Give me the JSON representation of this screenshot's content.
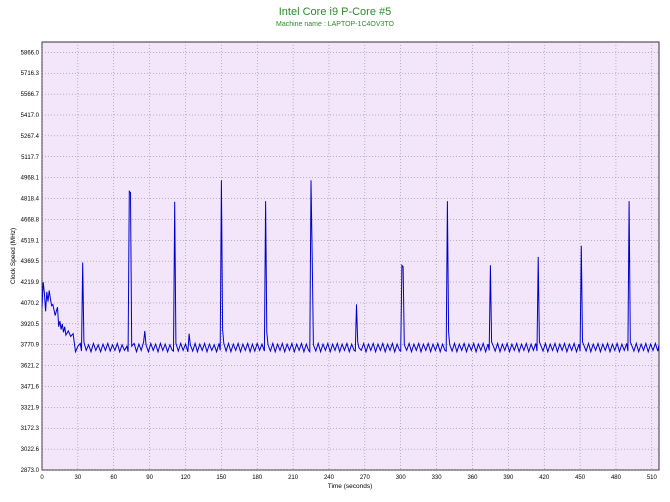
{
  "chart_data": {
    "type": "line",
    "title": "Intel Core i9 P-Core #5",
    "subtitle": "Machine name : LAPTOP-1C4OV3TO",
    "xlabel": "Time (seconds)",
    "ylabel": "Clock Speed (MHz)",
    "xlim": [
      0,
      516
    ],
    "ylim": [
      2873.0,
      5940
    ],
    "xticks": [
      0,
      30,
      60,
      90,
      120,
      150,
      180,
      210,
      240,
      270,
      300,
      330,
      360,
      390,
      420,
      450,
      480,
      510
    ],
    "yticks": [
      2873.0,
      3022.6,
      3172.3,
      3321.9,
      3471.6,
      3621.2,
      3770.9,
      3920.5,
      4070.2,
      4219.9,
      4369.5,
      4519.1,
      4668.8,
      4818.4,
      4968.1,
      5117.7,
      5267.4,
      5417.0,
      5566.7,
      5716.3,
      5866.0
    ],
    "ytick_labels": [
      "2873.0",
      "3022.6",
      "3172.3",
      "3321.9",
      "3471.6",
      "3621.2",
      "3770.9",
      "3920.5",
      "4070.2",
      "4219.9",
      "4369.5",
      "4519.1",
      "4668.8",
      "4818.4",
      "4968.1",
      "5117.7",
      "5267.4",
      "5417.0",
      "5566.7",
      "5716.3",
      "5866.0"
    ],
    "grid": true,
    "colors": {
      "line": "#0000cc",
      "plot_bg": "#f3e6fb",
      "grid": "#7a7a7a",
      "title": "#2e8b2e"
    },
    "series": [
      {
        "values": [
          [
            0,
            4040
          ],
          [
            1,
            4220
          ],
          [
            2,
            4140
          ],
          [
            3,
            4010
          ],
          [
            4,
            4150
          ],
          [
            5,
            4080
          ],
          [
            6,
            4160
          ],
          [
            7,
            4100
          ],
          [
            8,
            4050
          ],
          [
            9,
            4060
          ],
          [
            10,
            4020
          ],
          [
            11,
            3980
          ],
          [
            12,
            4010
          ],
          [
            13,
            4040
          ],
          [
            14,
            3900
          ],
          [
            15,
            3940
          ],
          [
            16,
            3880
          ],
          [
            17,
            3920
          ],
          [
            18,
            3860
          ],
          [
            19,
            3900
          ],
          [
            20,
            3840
          ],
          [
            22,
            3870
          ],
          [
            24,
            3830
          ],
          [
            26,
            3850
          ],
          [
            28,
            3720
          ],
          [
            30,
            3760
          ],
          [
            32,
            3780
          ],
          [
            33,
            3725
          ],
          [
            34,
            4360
          ],
          [
            35,
            3790
          ],
          [
            37,
            3730
          ],
          [
            39,
            3770
          ],
          [
            41,
            3720
          ],
          [
            43,
            3780
          ],
          [
            45,
            3730
          ],
          [
            47,
            3770
          ],
          [
            49,
            3720
          ],
          [
            51,
            3775
          ],
          [
            53,
            3730
          ],
          [
            55,
            3780
          ],
          [
            57,
            3725
          ],
          [
            59,
            3770
          ],
          [
            61,
            3730
          ],
          [
            63,
            3780
          ],
          [
            65,
            3720
          ],
          [
            67,
            3770
          ],
          [
            69,
            3730
          ],
          [
            71,
            3760
          ],
          [
            72,
            3720
          ],
          [
            73,
            4870
          ],
          [
            74,
            4860
          ],
          [
            75,
            3760
          ],
          [
            77,
            3780
          ],
          [
            79,
            3720
          ],
          [
            81,
            3775
          ],
          [
            83,
            3730
          ],
          [
            85,
            3790
          ],
          [
            86,
            3870
          ],
          [
            87,
            3770
          ],
          [
            89,
            3720
          ],
          [
            91,
            3780
          ],
          [
            93,
            3730
          ],
          [
            95,
            3775
          ],
          [
            97,
            3720
          ],
          [
            99,
            3780
          ],
          [
            101,
            3730
          ],
          [
            103,
            3775
          ],
          [
            105,
            3720
          ],
          [
            107,
            3770
          ],
          [
            109,
            3730
          ],
          [
            110,
            3725
          ],
          [
            111,
            4795
          ],
          [
            112,
            3780
          ],
          [
            114,
            3725
          ],
          [
            116,
            3780
          ],
          [
            118,
            3730
          ],
          [
            120,
            3775
          ],
          [
            122,
            3720
          ],
          [
            123,
            3850
          ],
          [
            124,
            3770
          ],
          [
            126,
            3725
          ],
          [
            128,
            3780
          ],
          [
            130,
            3720
          ],
          [
            132,
            3775
          ],
          [
            134,
            3730
          ],
          [
            136,
            3780
          ],
          [
            138,
            3720
          ],
          [
            140,
            3775
          ],
          [
            142,
            3730
          ],
          [
            144,
            3770
          ],
          [
            146,
            3720
          ],
          [
            148,
            3780
          ],
          [
            149,
            3730
          ],
          [
            150,
            4950
          ],
          [
            151,
            3880
          ],
          [
            152,
            3780
          ],
          [
            154,
            3725
          ],
          [
            156,
            3780
          ],
          [
            158,
            3720
          ],
          [
            160,
            3775
          ],
          [
            162,
            3730
          ],
          [
            164,
            3780
          ],
          [
            166,
            3720
          ],
          [
            168,
            3775
          ],
          [
            170,
            3730
          ],
          [
            172,
            3780
          ],
          [
            174,
            3720
          ],
          [
            176,
            3775
          ],
          [
            178,
            3725
          ],
          [
            180,
            3780
          ],
          [
            182,
            3730
          ],
          [
            184,
            3775
          ],
          [
            186,
            3725
          ],
          [
            187,
            4800
          ],
          [
            188,
            3860
          ],
          [
            189,
            3770
          ],
          [
            191,
            3725
          ],
          [
            193,
            3780
          ],
          [
            195,
            3720
          ],
          [
            197,
            3775
          ],
          [
            199,
            3730
          ],
          [
            201,
            3780
          ],
          [
            203,
            3720
          ],
          [
            205,
            3775
          ],
          [
            207,
            3730
          ],
          [
            209,
            3780
          ],
          [
            211,
            3720
          ],
          [
            213,
            3775
          ],
          [
            215,
            3730
          ],
          [
            217,
            3780
          ],
          [
            219,
            3720
          ],
          [
            221,
            3775
          ],
          [
            223,
            3730
          ],
          [
            224,
            3720
          ],
          [
            225,
            4950
          ],
          [
            226,
            4400
          ],
          [
            227,
            3770
          ],
          [
            229,
            3725
          ],
          [
            231,
            3780
          ],
          [
            233,
            3720
          ],
          [
            235,
            3775
          ],
          [
            237,
            3730
          ],
          [
            239,
            3780
          ],
          [
            241,
            3720
          ],
          [
            243,
            3775
          ],
          [
            245,
            3730
          ],
          [
            247,
            3780
          ],
          [
            249,
            3720
          ],
          [
            251,
            3775
          ],
          [
            253,
            3730
          ],
          [
            255,
            3780
          ],
          [
            257,
            3720
          ],
          [
            259,
            3775
          ],
          [
            261,
            3730
          ],
          [
            262,
            3725
          ],
          [
            263,
            4060
          ],
          [
            264,
            3790
          ],
          [
            265,
            3750
          ],
          [
            267,
            3730
          ],
          [
            269,
            3780
          ],
          [
            271,
            3720
          ],
          [
            273,
            3775
          ],
          [
            275,
            3730
          ],
          [
            277,
            3780
          ],
          [
            279,
            3720
          ],
          [
            281,
            3775
          ],
          [
            283,
            3730
          ],
          [
            285,
            3780
          ],
          [
            287,
            3720
          ],
          [
            289,
            3775
          ],
          [
            291,
            3730
          ],
          [
            293,
            3780
          ],
          [
            295,
            3720
          ],
          [
            297,
            3775
          ],
          [
            299,
            3730
          ],
          [
            300,
            3725
          ],
          [
            301,
            4340
          ],
          [
            302,
            4330
          ],
          [
            303,
            3770
          ],
          [
            305,
            3730
          ],
          [
            307,
            3780
          ],
          [
            309,
            3720
          ],
          [
            311,
            3775
          ],
          [
            313,
            3730
          ],
          [
            315,
            3780
          ],
          [
            317,
            3720
          ],
          [
            319,
            3775
          ],
          [
            321,
            3730
          ],
          [
            323,
            3780
          ],
          [
            325,
            3720
          ],
          [
            327,
            3775
          ],
          [
            329,
            3730
          ],
          [
            331,
            3780
          ],
          [
            333,
            3720
          ],
          [
            335,
            3775
          ],
          [
            337,
            3730
          ],
          [
            338,
            3725
          ],
          [
            339,
            4800
          ],
          [
            340,
            3860
          ],
          [
            341,
            3770
          ],
          [
            343,
            3725
          ],
          [
            345,
            3780
          ],
          [
            347,
            3720
          ],
          [
            349,
            3775
          ],
          [
            351,
            3730
          ],
          [
            353,
            3780
          ],
          [
            355,
            3720
          ],
          [
            357,
            3775
          ],
          [
            359,
            3730
          ],
          [
            361,
            3780
          ],
          [
            363,
            3720
          ],
          [
            365,
            3775
          ],
          [
            367,
            3730
          ],
          [
            369,
            3780
          ],
          [
            371,
            3720
          ],
          [
            373,
            3775
          ],
          [
            374,
            3730
          ],
          [
            375,
            4340
          ],
          [
            376,
            3790
          ],
          [
            377,
            3770
          ],
          [
            379,
            3725
          ],
          [
            381,
            3780
          ],
          [
            383,
            3720
          ],
          [
            385,
            3775
          ],
          [
            387,
            3730
          ],
          [
            389,
            3780
          ],
          [
            391,
            3720
          ],
          [
            393,
            3775
          ],
          [
            395,
            3730
          ],
          [
            397,
            3780
          ],
          [
            399,
            3720
          ],
          [
            401,
            3775
          ],
          [
            403,
            3730
          ],
          [
            405,
            3780
          ],
          [
            407,
            3720
          ],
          [
            409,
            3775
          ],
          [
            411,
            3730
          ],
          [
            413,
            3780
          ],
          [
            414,
            3725
          ],
          [
            415,
            4400
          ],
          [
            416,
            3790
          ],
          [
            417,
            3770
          ],
          [
            419,
            3725
          ],
          [
            421,
            3780
          ],
          [
            423,
            3720
          ],
          [
            425,
            3775
          ],
          [
            427,
            3730
          ],
          [
            429,
            3780
          ],
          [
            431,
            3720
          ],
          [
            433,
            3775
          ],
          [
            435,
            3730
          ],
          [
            437,
            3780
          ],
          [
            439,
            3720
          ],
          [
            441,
            3775
          ],
          [
            443,
            3730
          ],
          [
            445,
            3780
          ],
          [
            447,
            3720
          ],
          [
            449,
            3775
          ],
          [
            450,
            3725
          ],
          [
            451,
            4480
          ],
          [
            452,
            3790
          ],
          [
            453,
            3770
          ],
          [
            455,
            3725
          ],
          [
            457,
            3780
          ],
          [
            459,
            3720
          ],
          [
            461,
            3775
          ],
          [
            463,
            3730
          ],
          [
            465,
            3780
          ],
          [
            467,
            3720
          ],
          [
            469,
            3775
          ],
          [
            471,
            3730
          ],
          [
            473,
            3780
          ],
          [
            475,
            3720
          ],
          [
            477,
            3775
          ],
          [
            479,
            3730
          ],
          [
            481,
            3780
          ],
          [
            483,
            3720
          ],
          [
            485,
            3775
          ],
          [
            487,
            3730
          ],
          [
            489,
            3780
          ],
          [
            490,
            3725
          ],
          [
            491,
            4800
          ],
          [
            492,
            3790
          ],
          [
            493,
            3770
          ],
          [
            495,
            3725
          ],
          [
            497,
            3780
          ],
          [
            499,
            3720
          ],
          [
            501,
            3775
          ],
          [
            503,
            3730
          ],
          [
            505,
            3780
          ],
          [
            507,
            3720
          ],
          [
            509,
            3775
          ],
          [
            511,
            3730
          ],
          [
            513,
            3780
          ],
          [
            515,
            3725
          ],
          [
            516,
            3770
          ]
        ]
      }
    ]
  }
}
